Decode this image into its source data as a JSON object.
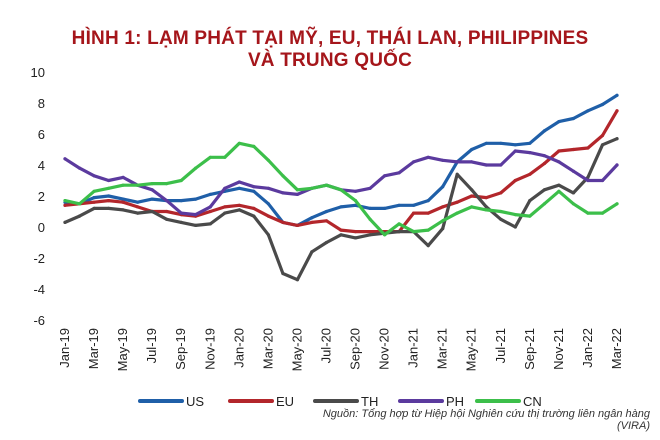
{
  "title_line1": "HÌNH 1: LẠM PHÁT TẠI MỸ, EU, THÁI LAN, PHILIPPINES",
  "title_line2": "VÀ TRUNG QUỐC",
  "source": "Nguồn: Tổng hợp từ Hiệp hội Nghiên cứu thị trường liên ngân hàng (VIRA)",
  "chart_data": {
    "type": "line",
    "title": "HÌNH 1: LẠM PHÁT TẠI MỸ, EU, THÁI LAN, PHILIPPINES VÀ TRUNG QUỐC",
    "xlabel": "",
    "ylabel": "",
    "ylim": [
      -6,
      10
    ],
    "yticks": [
      -6,
      -4,
      -2,
      0,
      2,
      4,
      6,
      8,
      10
    ],
    "grid": false,
    "legend_position": "bottom",
    "categories": [
      "Jan-19",
      "Feb-19",
      "Mar-19",
      "Apr-19",
      "May-19",
      "Jun-19",
      "Jul-19",
      "Aug-19",
      "Sep-19",
      "Oct-19",
      "Nov-19",
      "Dec-19",
      "Jan-20",
      "Feb-20",
      "Mar-20",
      "Apr-20",
      "May-20",
      "Jun-20",
      "Jul-20",
      "Aug-20",
      "Sep-20",
      "Oct-20",
      "Nov-20",
      "Dec-20",
      "Jan-21",
      "Feb-21",
      "Mar-21",
      "Apr-21",
      "May-21",
      "Jun-21",
      "Jul-21",
      "Aug-21",
      "Sep-21",
      "Oct-21",
      "Nov-21",
      "Dec-21",
      "Jan-22",
      "Feb-22",
      "Mar-22"
    ],
    "tick_labels": [
      "Jan-19",
      "Mar-19",
      "May-19",
      "Jul-19",
      "Sep-19",
      "Nov-19",
      "Jan-20",
      "Mar-20",
      "May-20",
      "Jul-20",
      "Sep-20",
      "Nov-20",
      "Jan-21",
      "Mar-21",
      "May-21",
      "Jul-21",
      "Sep-21",
      "Nov-21",
      "Jan-22",
      "Mar-22"
    ],
    "series": [
      {
        "name": "US",
        "color": "#1f5fa8",
        "values": [
          1.6,
          1.5,
          1.9,
          2.0,
          1.8,
          1.6,
          1.8,
          1.7,
          1.7,
          1.8,
          2.1,
          2.3,
          2.5,
          2.3,
          1.5,
          0.3,
          0.1,
          0.6,
          1.0,
          1.3,
          1.4,
          1.2,
          1.2,
          1.4,
          1.4,
          1.7,
          2.6,
          4.2,
          5.0,
          5.4,
          5.4,
          5.3,
          5.4,
          6.2,
          6.8,
          7.0,
          7.5,
          7.9,
          8.5
        ]
      },
      {
        "name": "EU",
        "color": "#b3262b",
        "values": [
          1.4,
          1.5,
          1.6,
          1.7,
          1.6,
          1.3,
          1.0,
          1.0,
          0.8,
          0.7,
          1.0,
          1.3,
          1.4,
          1.2,
          0.7,
          0.3,
          0.1,
          0.3,
          0.4,
          -0.2,
          -0.3,
          -0.3,
          -0.3,
          -0.3,
          0.9,
          0.9,
          1.3,
          1.6,
          2.0,
          1.9,
          2.2,
          3.0,
          3.4,
          4.1,
          4.9,
          5.0,
          5.1,
          5.9,
          7.5
        ]
      },
      {
        "name": "TH",
        "color": "#4a4a4a",
        "values": [
          0.3,
          0.7,
          1.2,
          1.2,
          1.1,
          0.9,
          1.0,
          0.5,
          0.3,
          0.1,
          0.2,
          0.9,
          1.1,
          0.7,
          -0.5,
          -3.0,
          -3.4,
          -1.6,
          -1.0,
          -0.5,
          -0.7,
          -0.5,
          -0.4,
          -0.3,
          -0.3,
          -1.2,
          -0.1,
          3.4,
          2.4,
          1.3,
          0.5,
          0.0,
          1.7,
          2.4,
          2.7,
          2.2,
          3.2,
          5.3,
          5.7
        ]
      },
      {
        "name": "PH",
        "color": "#5b3a9e",
        "values": [
          4.4,
          3.8,
          3.3,
          3.0,
          3.2,
          2.7,
          2.4,
          1.7,
          0.9,
          0.8,
          1.3,
          2.5,
          2.9,
          2.6,
          2.5,
          2.2,
          2.1,
          2.5,
          2.7,
          2.4,
          2.3,
          2.5,
          3.3,
          3.5,
          4.2,
          4.5,
          4.3,
          4.2,
          4.2,
          4.0,
          4.0,
          4.9,
          4.8,
          4.6,
          4.2,
          3.6,
          3.0,
          3.0,
          4.0
        ]
      },
      {
        "name": "CN",
        "color": "#3cbf4a",
        "values": [
          1.7,
          1.5,
          2.3,
          2.5,
          2.7,
          2.7,
          2.8,
          2.8,
          3.0,
          3.8,
          4.5,
          4.5,
          5.4,
          5.2,
          4.3,
          3.3,
          2.4,
          2.5,
          2.7,
          2.4,
          1.7,
          0.5,
          -0.5,
          0.2,
          -0.3,
          -0.2,
          0.4,
          0.9,
          1.3,
          1.1,
          1.0,
          0.8,
          0.7,
          1.5,
          2.3,
          1.5,
          0.9,
          0.9,
          1.5
        ]
      }
    ]
  }
}
